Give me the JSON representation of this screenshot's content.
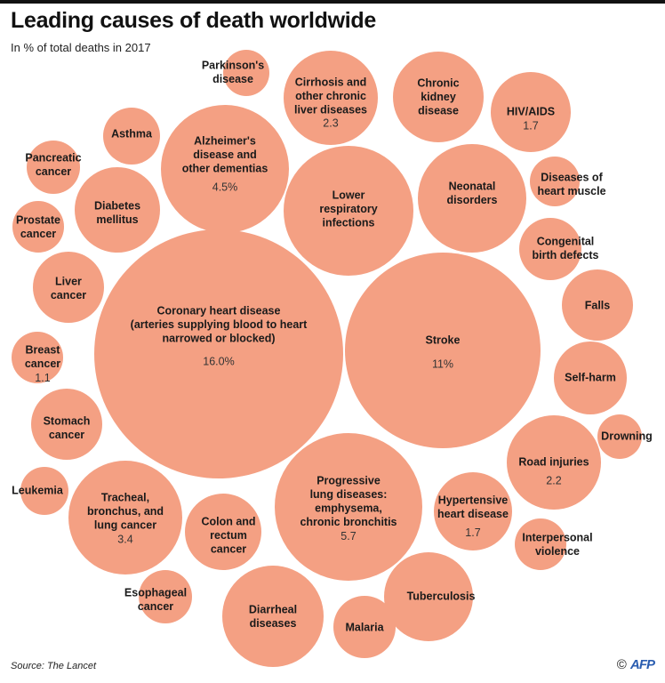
{
  "title": "Leading causes of death worldwide",
  "subtitle": "In % of total deaths in 2017",
  "source": "Source: The Lancet",
  "credit": {
    "symbol": "©",
    "logo": "AFP"
  },
  "colors": {
    "bubble": "#f4a083",
    "text": "#1a1a1a"
  },
  "chart_data": {
    "type": "bubble",
    "unit": "% of total deaths in 2017",
    "items": [
      {
        "name": "Parkinson's disease",
        "lines": [
          "Parkinson's",
          "disease"
        ],
        "value": null
      },
      {
        "name": "Cirrhosis and other chronic liver diseases",
        "lines": [
          "Cirrhosis and",
          "other chronic",
          "liver diseases"
        ],
        "value": 2.3,
        "label": "2.3"
      },
      {
        "name": "Chronic kidney disease",
        "lines": [
          "Chronic",
          "kidney",
          "disease"
        ],
        "value": null
      },
      {
        "name": "HIV/AIDS",
        "lines": [
          "HIV/AIDS"
        ],
        "value": 1.7,
        "label": "1.7"
      },
      {
        "name": "Asthma",
        "lines": [
          "Asthma"
        ],
        "value": null
      },
      {
        "name": "Alzheimer's disease and other dementias",
        "lines": [
          "Alzheimer's",
          "disease and",
          "other dementias"
        ],
        "value": 4.5,
        "label": "4.5%"
      },
      {
        "name": "Pancreatic cancer",
        "lines": [
          "Pancreatic",
          "cancer"
        ],
        "value": null
      },
      {
        "name": "Lower respiratory infections",
        "lines": [
          "Lower",
          "respiratory",
          "infections"
        ],
        "value": null
      },
      {
        "name": "Neonatal disorders",
        "lines": [
          "Neonatal",
          "disorders"
        ],
        "value": null
      },
      {
        "name": "Diseases of heart muscle",
        "lines": [
          "Diseases of",
          "heart muscle"
        ],
        "value": null
      },
      {
        "name": "Diabetes mellitus",
        "lines": [
          "Diabetes",
          "mellitus"
        ],
        "value": null
      },
      {
        "name": "Prostate cancer",
        "lines": [
          "Prostate",
          "cancer"
        ],
        "value": null
      },
      {
        "name": "Congenital birth defects",
        "lines": [
          "Congenital",
          "birth defects"
        ],
        "value": null
      },
      {
        "name": "Coronary heart disease (arteries supplying blood to heart narrowed or blocked)",
        "lines": [
          "Coronary heart disease",
          "(arteries supplying blood to heart",
          "narrowed or blocked)"
        ],
        "value": 16.0,
        "label": "16.0%"
      },
      {
        "name": "Stroke",
        "lines": [
          "Stroke"
        ],
        "value": 11,
        "label": "11%"
      },
      {
        "name": "Liver cancer",
        "lines": [
          "Liver",
          "cancer"
        ],
        "value": null
      },
      {
        "name": "Falls",
        "lines": [
          "Falls"
        ],
        "value": null
      },
      {
        "name": "Breast cancer",
        "lines": [
          "Breast",
          "cancer"
        ],
        "value": 1.1,
        "label": "1.1"
      },
      {
        "name": "Self-harm",
        "lines": [
          "Self-harm"
        ],
        "value": null
      },
      {
        "name": "Stomach cancer",
        "lines": [
          "Stomach",
          "cancer"
        ],
        "value": null
      },
      {
        "name": "Drowning",
        "lines": [
          "Drowning"
        ],
        "value": null
      },
      {
        "name": "Road injuries",
        "lines": [
          "Road injuries"
        ],
        "value": 2.2,
        "label": "2.2"
      },
      {
        "name": "Leukemia",
        "lines": [
          "Leukemia"
        ],
        "value": null
      },
      {
        "name": "Tracheal, bronchus, and lung cancer",
        "lines": [
          "Tracheal,",
          "bronchus, and",
          "lung cancer"
        ],
        "value": 3.4,
        "label": "3.4"
      },
      {
        "name": "Colon and rectum cancer",
        "lines": [
          "Colon and",
          "rectum",
          "cancer"
        ],
        "value": null
      },
      {
        "name": "Progressive lung diseases: emphysema, chronic bronchitis",
        "lines": [
          "Progressive",
          "lung diseases:",
          "emphysema,",
          "chronic bronchitis"
        ],
        "value": 5.7,
        "label": "5.7"
      },
      {
        "name": "Hypertensive heart disease",
        "lines": [
          "Hypertensive",
          "heart disease"
        ],
        "value": 1.7,
        "label": "1.7"
      },
      {
        "name": "Interpersonal violence",
        "lines": [
          "Interpersonal",
          "violence"
        ],
        "value": null
      },
      {
        "name": "Esophageal cancer",
        "lines": [
          "Esophageal",
          "cancer"
        ],
        "value": null
      },
      {
        "name": "Diarrheal diseases",
        "lines": [
          "Diarrheal",
          "diseases"
        ],
        "value": null
      },
      {
        "name": "Tuberculosis",
        "lines": [
          "Tuberculosis"
        ],
        "value": null
      },
      {
        "name": "Malaria",
        "lines": [
          "Malaria"
        ],
        "value": null
      }
    ]
  }
}
